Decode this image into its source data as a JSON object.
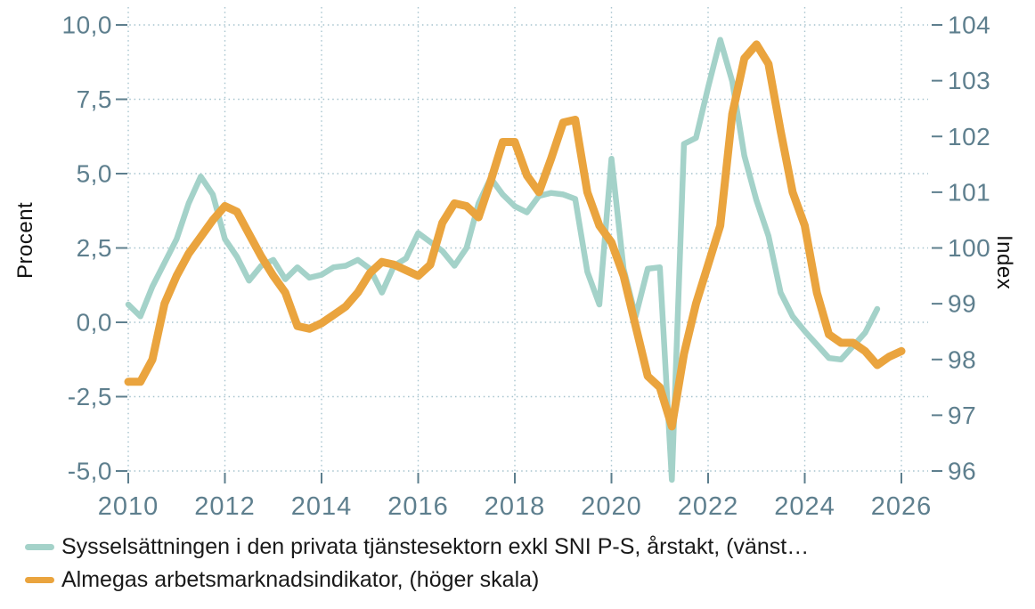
{
  "chart_data": {
    "type": "line",
    "title": "",
    "grid": {
      "style": "dotted",
      "color": "#a6c3ce",
      "tick_label_color": "#5e7f8e"
    },
    "legend_position": "bottom-left",
    "x_axis": {
      "range": [
        2010,
        2026
      ],
      "tick_values": [
        2010,
        2012,
        2014,
        2016,
        2018,
        2020,
        2022,
        2024,
        2026
      ],
      "ticks": [
        "2010",
        "2012",
        "2014",
        "2016",
        "2018",
        "2020",
        "2022",
        "2024",
        "2026"
      ]
    },
    "left_axis": {
      "label": "Procent",
      "range": [
        -5,
        10
      ],
      "tick_values": [
        10,
        7.5,
        5,
        2.5,
        0,
        -2.5,
        -5
      ],
      "ticks": [
        "10,0",
        "7,5",
        "5,0",
        "2,5",
        "0,0",
        "-2,5",
        "-5,0"
      ],
      "gridlines": true
    },
    "right_axis": {
      "label": "Index",
      "range": [
        96,
        104
      ],
      "tick_values": [
        104,
        103,
        102,
        101,
        100,
        99,
        98,
        97,
        96
      ],
      "ticks": [
        "104",
        "103",
        "102",
        "101",
        "100",
        "99",
        "98",
        "97",
        "96"
      ],
      "gridlines": false
    },
    "series": [
      {
        "name": "Sysselsättningen i den privata tjänstesektorn exkl SNI P-S, årstakt, (vänst…",
        "axis": "left",
        "unit": "percent",
        "color": "#a4d2c9",
        "start_year": 2010.0,
        "step": 0.25,
        "values": [
          0.6,
          0.2,
          1.2,
          2.0,
          2.8,
          4.0,
          4.9,
          4.3,
          2.8,
          2.2,
          1.4,
          1.9,
          2.1,
          1.45,
          1.85,
          1.5,
          1.6,
          1.85,
          1.9,
          2.1,
          1.8,
          1.0,
          1.9,
          2.15,
          3.0,
          2.7,
          2.4,
          1.9,
          2.5,
          4.0,
          4.85,
          4.3,
          3.9,
          3.7,
          4.25,
          4.35,
          4.3,
          4.15,
          1.7,
          0.6,
          5.5,
          1.8,
          0.2,
          1.8,
          1.85,
          -5.3,
          6.0,
          6.2,
          7.9,
          9.5,
          8.1,
          5.6,
          4.1,
          2.9,
          1.0,
          0.2,
          -0.3,
          -0.75,
          -1.2,
          -1.25,
          -0.8,
          -0.35,
          0.45
        ]
      },
      {
        "name": "Almegas arbetsmarknadsindikator, (höger skala)",
        "axis": "right",
        "unit": "index",
        "color": "#eaa43e",
        "start_year": 2010.0,
        "step": 0.25,
        "values": [
          97.6,
          97.6,
          98.0,
          99.0,
          99.5,
          99.9,
          100.2,
          100.5,
          100.75,
          100.65,
          100.25,
          99.85,
          99.5,
          99.2,
          98.6,
          98.55,
          98.65,
          98.8,
          98.95,
          99.2,
          99.55,
          99.75,
          99.7,
          99.6,
          99.5,
          99.7,
          100.45,
          100.8,
          100.75,
          100.55,
          101.2,
          101.9,
          101.9,
          101.3,
          101.0,
          101.6,
          102.25,
          102.3,
          101.0,
          100.4,
          100.1,
          99.5,
          98.6,
          97.7,
          97.5,
          96.8,
          98.1,
          99.0,
          99.7,
          100.4,
          102.4,
          103.4,
          103.65,
          103.3,
          102.1,
          101.0,
          100.4,
          99.2,
          98.45,
          98.3,
          98.3,
          98.15,
          97.9,
          98.05,
          98.15
        ]
      }
    ]
  }
}
